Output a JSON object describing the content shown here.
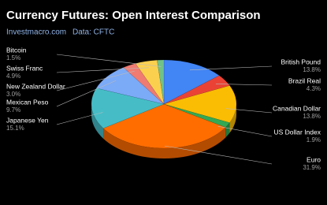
{
  "chart_data": {
    "type": "pie",
    "title": "Currency Futures: Open Interest Comparison",
    "subtitle": "Investmacro.com",
    "source": "Data: CFTC",
    "categories": [
      "British Pound",
      "Brazil Real",
      "Canadian Dollar",
      "US Dollar Index",
      "Euro",
      "Japanese Yen",
      "Mexican Peso",
      "New Zealand Dollar",
      "Swiss Franc",
      "Bitcoin"
    ],
    "values": [
      13.8,
      4.3,
      13.8,
      1.9,
      31.9,
      15.1,
      9.7,
      3.0,
      4.9,
      1.5
    ],
    "value_labels": [
      "13.8%",
      "4.3%",
      "13.8%",
      "1.9%",
      "31.9%",
      "15.1%",
      "9.7%",
      "3.0%",
      "4.9%",
      "1.5%"
    ],
    "colors": [
      "#4285f4",
      "#ea4335",
      "#fbbc04",
      "#34a853",
      "#ff6d01",
      "#46bdc6",
      "#7baaf7",
      "#f07b72",
      "#fcd04f",
      "#71c287"
    ]
  }
}
